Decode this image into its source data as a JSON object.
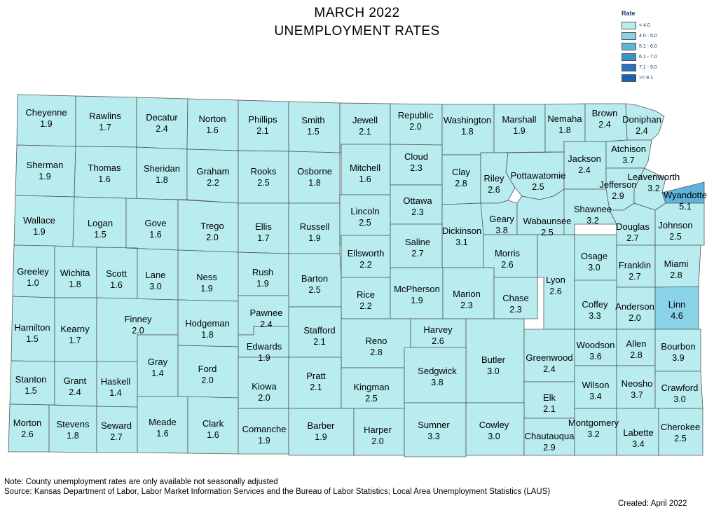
{
  "title": {
    "line1": "MARCH 2022",
    "line2": "UNEMPLOYMENT RATES"
  },
  "legend": {
    "title": "Rate",
    "items": [
      {
        "label": "< 4.0",
        "color": "#b9ecef"
      },
      {
        "label": "4.0 - 5.0",
        "color": "#89d3e6"
      },
      {
        "label": "5.1 - 6.0",
        "color": "#5eb4da"
      },
      {
        "label": "6.1 - 7.0",
        "color": "#3a92cb"
      },
      {
        "label": "7.1 - 9.0",
        "color": "#2675bd"
      },
      {
        "label": ">= 9.1",
        "color": "#1764b4"
      }
    ]
  },
  "counties": [
    {
      "name": "Cheyenne",
      "rate": "1.9"
    },
    {
      "name": "Rawlins",
      "rate": "1.7"
    },
    {
      "name": "Decatur",
      "rate": "2.4"
    },
    {
      "name": "Norton",
      "rate": "1.6"
    },
    {
      "name": "Phillips",
      "rate": "2.1"
    },
    {
      "name": "Smith",
      "rate": "1.5"
    },
    {
      "name": "Jewell",
      "rate": "2.1"
    },
    {
      "name": "Republic",
      "rate": "2.0"
    },
    {
      "name": "Washington",
      "rate": "1.8"
    },
    {
      "name": "Marshall",
      "rate": "1.9"
    },
    {
      "name": "Nemaha",
      "rate": "1.8"
    },
    {
      "name": "Brown",
      "rate": "2.4"
    },
    {
      "name": "Doniphan",
      "rate": "2.4"
    },
    {
      "name": "Sherman",
      "rate": "1.9"
    },
    {
      "name": "Thomas",
      "rate": "1.6"
    },
    {
      "name": "Sheridan",
      "rate": "1.8"
    },
    {
      "name": "Graham",
      "rate": "2.2"
    },
    {
      "name": "Rooks",
      "rate": "2.5"
    },
    {
      "name": "Osborne",
      "rate": "1.8"
    },
    {
      "name": "Mitchell",
      "rate": "1.6"
    },
    {
      "name": "Cloud",
      "rate": "2.3"
    },
    {
      "name": "Clay",
      "rate": "2.8"
    },
    {
      "name": "Riley",
      "rate": "2.6"
    },
    {
      "name": "Pottawatomie",
      "rate": "2.5"
    },
    {
      "name": "Jackson",
      "rate": "2.4"
    },
    {
      "name": "Atchison",
      "rate": "3.7"
    },
    {
      "name": "Jefferson",
      "rate": "2.9"
    },
    {
      "name": "Leavenworth",
      "rate": "3.2"
    },
    {
      "name": "Wyandotte",
      "rate": "5.1"
    },
    {
      "name": "Wallace",
      "rate": "1.9"
    },
    {
      "name": "Logan",
      "rate": "1.5"
    },
    {
      "name": "Gove",
      "rate": "1.6"
    },
    {
      "name": "Trego",
      "rate": "2.0"
    },
    {
      "name": "Ellis",
      "rate": "1.7"
    },
    {
      "name": "Russell",
      "rate": "1.9"
    },
    {
      "name": "Lincoln",
      "rate": "2.5"
    },
    {
      "name": "Ottawa",
      "rate": "2.3"
    },
    {
      "name": "Dickinson",
      "rate": "3.1"
    },
    {
      "name": "Geary",
      "rate": "3.8"
    },
    {
      "name": "Wabaunsee",
      "rate": "2.5"
    },
    {
      "name": "Shawnee",
      "rate": "3.2"
    },
    {
      "name": "Douglas",
      "rate": "2.7"
    },
    {
      "name": "Johnson",
      "rate": "2.5"
    },
    {
      "name": "Greeley",
      "rate": "1.0"
    },
    {
      "name": "Wichita",
      "rate": "1.8"
    },
    {
      "name": "Scott",
      "rate": "1.6"
    },
    {
      "name": "Lane",
      "rate": "3.0"
    },
    {
      "name": "Ness",
      "rate": "1.9"
    },
    {
      "name": "Rush",
      "rate": "1.9"
    },
    {
      "name": "Barton",
      "rate": "2.5"
    },
    {
      "name": "Ellsworth",
      "rate": "2.2"
    },
    {
      "name": "Saline",
      "rate": "2.7"
    },
    {
      "name": "Morris",
      "rate": "2.6"
    },
    {
      "name": "Lyon",
      "rate": "2.6"
    },
    {
      "name": "Osage",
      "rate": "3.0"
    },
    {
      "name": "Franklin",
      "rate": "2.7"
    },
    {
      "name": "Miami",
      "rate": "2.8"
    },
    {
      "name": "Hamilton",
      "rate": "1.5"
    },
    {
      "name": "Kearny",
      "rate": "1.7"
    },
    {
      "name": "Finney",
      "rate": "2.0"
    },
    {
      "name": "Hodgeman",
      "rate": "1.8"
    },
    {
      "name": "Pawnee",
      "rate": "2.4"
    },
    {
      "name": "Rice",
      "rate": "2.2"
    },
    {
      "name": "McPherson",
      "rate": "1.9"
    },
    {
      "name": "Marion",
      "rate": "2.3"
    },
    {
      "name": "Chase",
      "rate": "2.3"
    },
    {
      "name": "Coffey",
      "rate": "3.3"
    },
    {
      "name": "Anderson",
      "rate": "2.0"
    },
    {
      "name": "Linn",
      "rate": "4.6"
    },
    {
      "name": "Stafford",
      "rate": "2.1"
    },
    {
      "name": "Reno",
      "rate": "2.8"
    },
    {
      "name": "Harvey",
      "rate": "2.6"
    },
    {
      "name": "Edwards",
      "rate": "1.9"
    },
    {
      "name": "Gray",
      "rate": "1.4"
    },
    {
      "name": "Ford",
      "rate": "2.0"
    },
    {
      "name": "Butler",
      "rate": "3.0"
    },
    {
      "name": "Greenwood",
      "rate": "2.4"
    },
    {
      "name": "Woodson",
      "rate": "3.6"
    },
    {
      "name": "Allen",
      "rate": "2.8"
    },
    {
      "name": "Bourbon",
      "rate": "3.9"
    },
    {
      "name": "Stanton",
      "rate": "1.5"
    },
    {
      "name": "Grant",
      "rate": "2.4"
    },
    {
      "name": "Haskell",
      "rate": "1.4"
    },
    {
      "name": "Kiowa",
      "rate": "2.0"
    },
    {
      "name": "Pratt",
      "rate": "2.1"
    },
    {
      "name": "Kingman",
      "rate": "2.5"
    },
    {
      "name": "Sedgwick",
      "rate": "3.8"
    },
    {
      "name": "Elk",
      "rate": "2.1"
    },
    {
      "name": "Wilson",
      "rate": "3.4"
    },
    {
      "name": "Neosho",
      "rate": "3.7"
    },
    {
      "name": "Crawford",
      "rate": "3.0"
    },
    {
      "name": "Morton",
      "rate": "2.6"
    },
    {
      "name": "Stevens",
      "rate": "1.8"
    },
    {
      "name": "Seward",
      "rate": "2.7"
    },
    {
      "name": "Meade",
      "rate": "1.6"
    },
    {
      "name": "Clark",
      "rate": "1.6"
    },
    {
      "name": "Comanche",
      "rate": "1.9"
    },
    {
      "name": "Barber",
      "rate": "1.9"
    },
    {
      "name": "Harper",
      "rate": "2.0"
    },
    {
      "name": "Sumner",
      "rate": "3.3"
    },
    {
      "name": "Cowley",
      "rate": "3.0"
    },
    {
      "name": "Chautauqua",
      "rate": "2.9"
    },
    {
      "name": "Montgomery",
      "rate": "3.2"
    },
    {
      "name": "Labette",
      "rate": "3.4"
    },
    {
      "name": "Cherokee",
      "rate": "2.5"
    }
  ],
  "footer": {
    "note": "Note: County unemployment rates are only available not seasonally adjusted",
    "source": "Source: Kansas Department of Labor, Labor Market Information Services and the Bureau of Labor Statistics; Local Area Unemployment Statistics (LAUS)",
    "created": "Created: April 2022"
  }
}
